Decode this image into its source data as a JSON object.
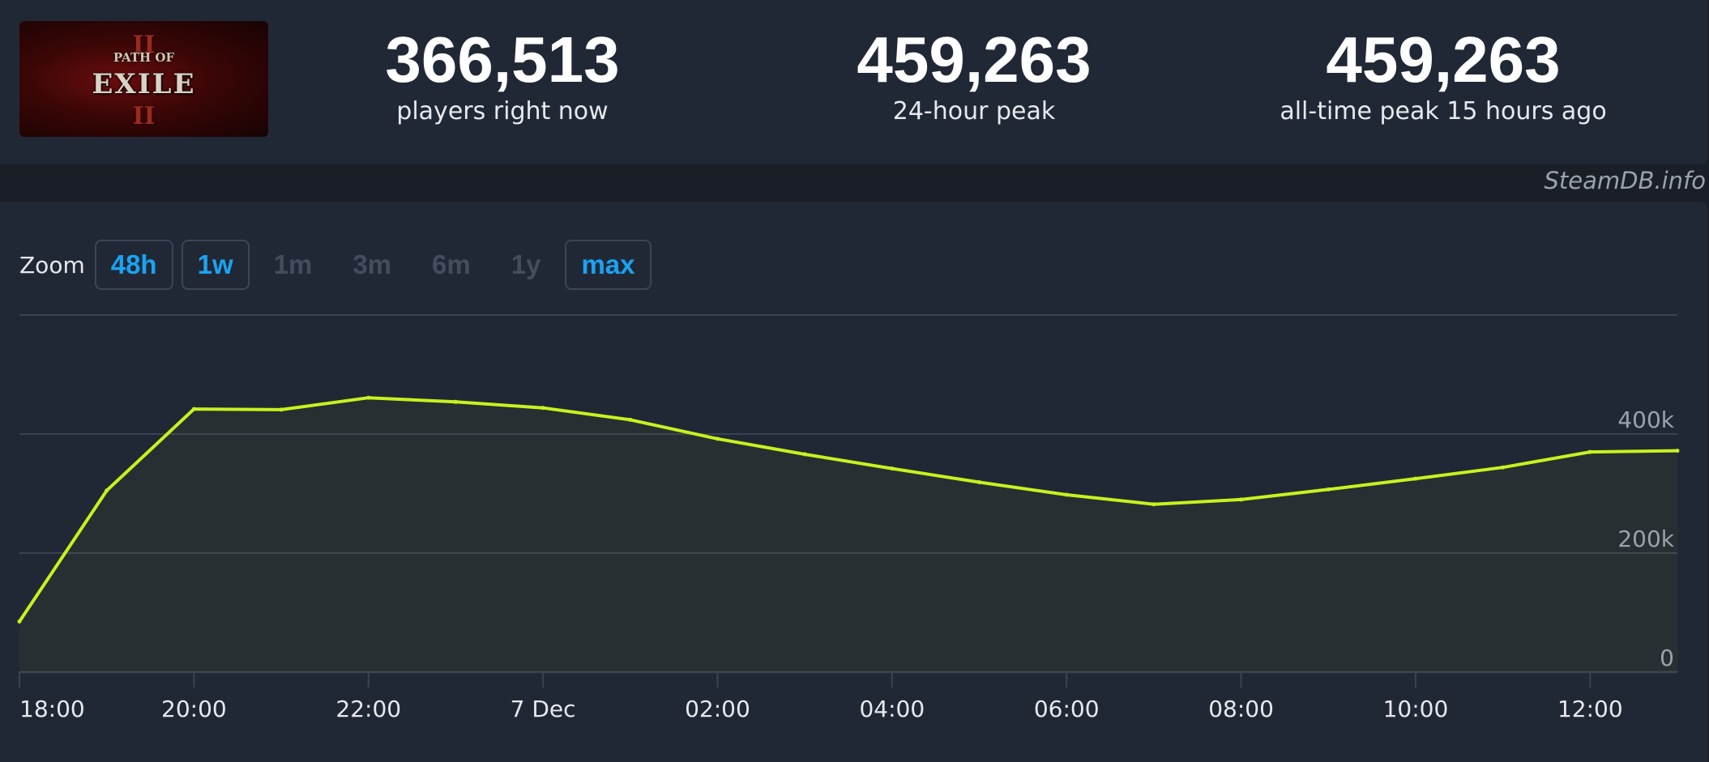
{
  "header": {
    "logo": {
      "alt": "Path of Exile 2",
      "numeral": "II",
      "small_word": "PATH OF",
      "word": "EXILE"
    },
    "stats": [
      {
        "value": "366,513",
        "label": "players right now"
      },
      {
        "value": "459,263",
        "label": "24-hour peak"
      },
      {
        "value": "459,263",
        "label": "all-time peak 15 hours ago"
      }
    ]
  },
  "credit": "SteamDB.info",
  "zoom": {
    "label": "Zoom",
    "options": [
      {
        "label": "48h",
        "enabled": true
      },
      {
        "label": "1w",
        "enabled": true
      },
      {
        "label": "1m",
        "enabled": false
      },
      {
        "label": "3m",
        "enabled": false
      },
      {
        "label": "6m",
        "enabled": false
      },
      {
        "label": "1y",
        "enabled": false
      },
      {
        "label": "max",
        "enabled": true
      }
    ]
  },
  "colors": {
    "line": "#c7f21e",
    "grid": "#3a4352",
    "axis_text": "#e6e9ee",
    "y_tick_text": "#9aa2ad",
    "accent": "#1aa3f2"
  },
  "chart_data": {
    "type": "line",
    "title": "",
    "xlabel": "",
    "ylabel": "",
    "x_ticks": [
      "18:00",
      "20:00",
      "22:00",
      "7 Dec",
      "02:00",
      "04:00",
      "06:00",
      "08:00",
      "10:00",
      "12:00"
    ],
    "y_ticks": [
      "0",
      "200k",
      "400k"
    ],
    "ylim": [
      0,
      600000
    ],
    "x_range_hours": [
      0,
      19
    ],
    "grid": true,
    "legend": "none",
    "series": [
      {
        "x": [
          "18:00",
          "19:00",
          "20:00",
          "21:00",
          "22:00",
          "23:00",
          "00:00",
          "01:00",
          "02:00",
          "03:00",
          "04:00",
          "05:00",
          "06:00",
          "07:00",
          "08:00",
          "09:00",
          "10:00",
          "11:00",
          "12:00",
          "13:00"
        ],
        "values": [
          85000,
          305000,
          442000,
          441000,
          461000,
          454000,
          444000,
          424000,
          392000,
          366000,
          342000,
          319000,
          298000,
          282000,
          290000,
          307000,
          325000,
          344000,
          370000,
          372000
        ]
      }
    ]
  }
}
